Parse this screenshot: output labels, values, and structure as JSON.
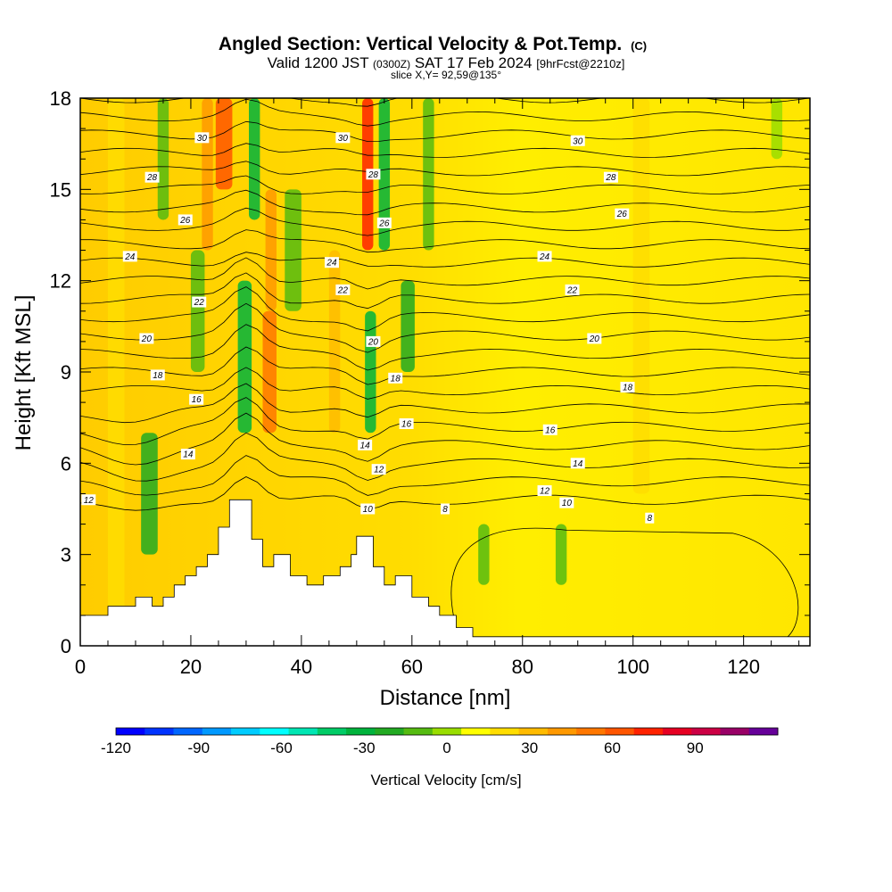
{
  "title": {
    "main": "Angled Section: Vertical Velocity & Pot.Temp.",
    "main_suffix": "(C)",
    "valid_prefix": "Valid 1200 JST",
    "valid_utc": "(0300Z)",
    "valid_date": "SAT 17 Feb 2024",
    "forecast": "[9hrFcst@2210z]",
    "slice": "slice X,Y= 92,59@135°"
  },
  "chart_data": {
    "type": "heatmap",
    "xlabel": "Distance [nm]",
    "ylabel": "Height [Kft MSL]",
    "xlim": [
      0,
      132
    ],
    "ylim": [
      0,
      18
    ],
    "x_ticks": [
      "0",
      "20",
      "40",
      "60",
      "80",
      "100",
      "120"
    ],
    "y_ticks": [
      "0",
      "3",
      "6",
      "9",
      "12",
      "15",
      "18"
    ],
    "colorbar": {
      "label": "Vertical Velocity [cm/s]",
      "range": [
        -120,
        110
      ],
      "step": 10,
      "tick_labels": [
        "-120",
        "-90",
        "-60",
        "-30",
        "0",
        "30",
        "60",
        "90"
      ],
      "colors": [
        "#0000ff",
        "#0033ff",
        "#0066ff",
        "#0099ff",
        "#00ccff",
        "#00ffff",
        "#00e6b3",
        "#00cc66",
        "#00b33c",
        "#22aa22",
        "#55bb11",
        "#99dd00",
        "#ffff00",
        "#ffdd00",
        "#ffbb00",
        "#ff9900",
        "#ff7700",
        "#ff5500",
        "#ff2200",
        "#e60022",
        "#cc0044",
        "#990066",
        "#660099"
      ]
    },
    "terrain_profile": {
      "x": [
        0,
        5,
        5,
        10,
        10,
        13,
        13,
        15,
        15,
        17,
        17,
        19,
        19,
        21,
        21,
        23,
        23,
        25,
        25,
        27,
        27,
        28,
        28,
        31,
        31,
        33,
        33,
        35,
        35,
        38,
        38,
        41,
        41,
        44,
        44,
        47,
        47,
        49,
        49,
        50,
        50,
        53,
        53,
        55,
        55,
        57,
        57,
        60,
        60,
        63,
        63,
        65,
        65,
        68,
        68,
        71,
        71,
        132
      ],
      "height_kft": [
        1.0,
        1.0,
        1.3,
        1.3,
        1.6,
        1.6,
        1.3,
        1.3,
        1.6,
        1.6,
        2.0,
        2.0,
        2.3,
        2.3,
        2.6,
        2.6,
        3.0,
        3.0,
        3.9,
        3.9,
        4.8,
        4.8,
        4.8,
        4.8,
        3.5,
        3.5,
        2.6,
        2.6,
        3.0,
        3.0,
        2.3,
        2.3,
        2.0,
        2.0,
        2.3,
        2.3,
        2.6,
        2.6,
        3.0,
        3.0,
        3.6,
        3.6,
        2.6,
        2.6,
        2.0,
        2.0,
        2.3,
        2.3,
        1.6,
        1.6,
        1.3,
        1.3,
        1.0,
        1.0,
        0.6,
        0.6,
        0.3,
        0.3
      ]
    },
    "w_bands": [
      {
        "x": 5,
        "width": 3,
        "ymin": 0,
        "ymax": 18,
        "w": 10
      },
      {
        "x": 11,
        "width": 3,
        "ymin": 3,
        "ymax": 7,
        "w": -30
      },
      {
        "x": 14,
        "width": 2,
        "ymin": 14,
        "ymax": 18,
        "w": -20
      },
      {
        "x": 20,
        "width": 2.5,
        "ymin": 9,
        "ymax": 13,
        "w": -20
      },
      {
        "x": 22,
        "width": 2,
        "ymin": 13,
        "ymax": 18,
        "w": 30
      },
      {
        "x": 24.5,
        "width": 3,
        "ymin": 15,
        "ymax": 18,
        "w": 50
      },
      {
        "x": 28.5,
        "width": 2.5,
        "ymin": 7,
        "ymax": 12,
        "w": -40
      },
      {
        "x": 30.5,
        "width": 2,
        "ymin": 14,
        "ymax": 18,
        "w": -40
      },
      {
        "x": 33,
        "width": 2.5,
        "ymin": 7,
        "ymax": 11,
        "w": 40
      },
      {
        "x": 33.5,
        "width": 2,
        "ymin": 11,
        "ymax": 15,
        "w": 30
      },
      {
        "x": 37,
        "width": 3,
        "ymin": 11,
        "ymax": 15,
        "w": -20
      },
      {
        "x": 45,
        "width": 2,
        "ymin": 7,
        "ymax": 13,
        "w": 20
      },
      {
        "x": 51,
        "width": 2,
        "ymin": 13,
        "ymax": 18,
        "w": 60
      },
      {
        "x": 51.5,
        "width": 2,
        "ymin": 7,
        "ymax": 11,
        "w": -40
      },
      {
        "x": 54,
        "width": 2,
        "ymin": 13,
        "ymax": 18,
        "w": -40
      },
      {
        "x": 58,
        "width": 2.5,
        "ymin": 9,
        "ymax": 12,
        "w": -30
      },
      {
        "x": 62,
        "width": 2,
        "ymin": 13,
        "ymax": 18,
        "w": -20
      },
      {
        "x": 72,
        "width": 2,
        "ymin": 2,
        "ymax": 4,
        "w": -20
      },
      {
        "x": 86,
        "width": 2,
        "ymin": 2,
        "ymax": 4,
        "w": -20
      },
      {
        "x": 100,
        "width": 3,
        "ymin": 5,
        "ymax": 18,
        "w": 10
      },
      {
        "x": 125,
        "width": 2,
        "ymin": 16,
        "ymax": 18,
        "w": -10
      }
    ],
    "contour_labels": [
      {
        "text": "30",
        "x": 22,
        "y": 16.7
      },
      {
        "text": "28",
        "x": 13,
        "y": 15.4
      },
      {
        "text": "26",
        "x": 19,
        "y": 14.0
      },
      {
        "text": "24",
        "x": 9,
        "y": 12.8
      },
      {
        "text": "22",
        "x": 21.5,
        "y": 11.3
      },
      {
        "text": "20",
        "x": 12,
        "y": 10.1
      },
      {
        "text": "18",
        "x": 14,
        "y": 8.9
      },
      {
        "text": "16",
        "x": 21,
        "y": 8.1
      },
      {
        "text": "14",
        "x": 19.5,
        "y": 6.3
      },
      {
        "text": "12",
        "x": 1.5,
        "y": 4.8
      },
      {
        "text": "30",
        "x": 47.5,
        "y": 16.7
      },
      {
        "text": "28",
        "x": 53,
        "y": 15.5
      },
      {
        "text": "26",
        "x": 55,
        "y": 13.9
      },
      {
        "text": "24",
        "x": 45.5,
        "y": 12.6
      },
      {
        "text": "22",
        "x": 47.5,
        "y": 11.7
      },
      {
        "text": "20",
        "x": 53,
        "y": 10.0
      },
      {
        "text": "18",
        "x": 57,
        "y": 8.8
      },
      {
        "text": "16",
        "x": 59,
        "y": 7.3
      },
      {
        "text": "14",
        "x": 51.5,
        "y": 6.6
      },
      {
        "text": "12",
        "x": 54,
        "y": 5.8
      },
      {
        "text": "10",
        "x": 52,
        "y": 4.5
      },
      {
        "text": "8",
        "x": 66,
        "y": 4.5
      },
      {
        "text": "30",
        "x": 90,
        "y": 16.6
      },
      {
        "text": "28",
        "x": 96,
        "y": 15.4
      },
      {
        "text": "26",
        "x": 98,
        "y": 14.2
      },
      {
        "text": "24",
        "x": 84,
        "y": 12.8
      },
      {
        "text": "22",
        "x": 89,
        "y": 11.7
      },
      {
        "text": "20",
        "x": 93,
        "y": 10.1
      },
      {
        "text": "18",
        "x": 99,
        "y": 8.5
      },
      {
        "text": "16",
        "x": 85,
        "y": 7.1
      },
      {
        "text": "14",
        "x": 90,
        "y": 6.0
      },
      {
        "text": "12",
        "x": 84,
        "y": 5.1
      },
      {
        "text": "10",
        "x": 88,
        "y": 4.7
      },
      {
        "text": "8",
        "x": 103,
        "y": 4.2
      }
    ]
  }
}
